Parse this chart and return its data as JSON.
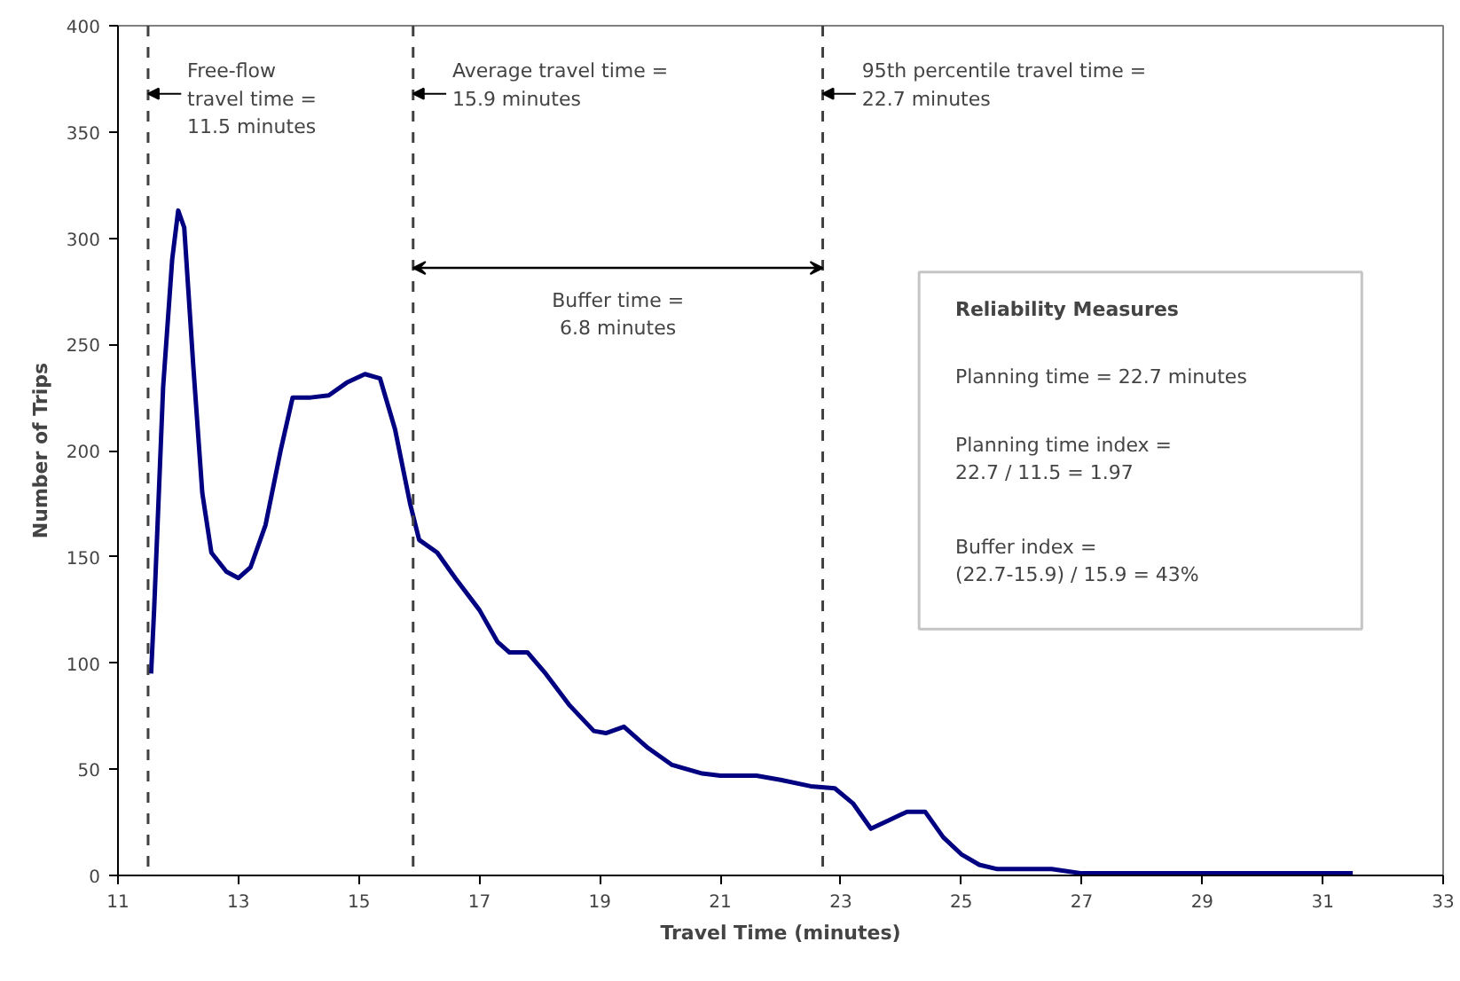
{
  "chart_data": {
    "type": "line",
    "xlabel": "Travel Time (minutes)",
    "ylabel": "Number of Trips",
    "x": [
      11.55,
      11.6,
      11.75,
      11.9,
      12.0,
      12.1,
      12.25,
      12.4,
      12.55,
      12.8,
      13.0,
      13.2,
      13.45,
      13.7,
      13.9,
      14.2,
      14.5,
      14.8,
      15.1,
      15.35,
      15.6,
      15.85,
      16.0,
      16.3,
      16.6,
      17.0,
      17.3,
      17.5,
      17.8,
      18.1,
      18.5,
      18.9,
      19.1,
      19.4,
      19.8,
      20.2,
      20.7,
      21.0,
      21.6,
      22.0,
      22.5,
      22.9,
      23.2,
      23.5,
      23.8,
      24.1,
      24.4,
      24.7,
      25.0,
      25.3,
      25.6,
      26.5,
      27.0,
      28.0,
      30.0,
      31.5
    ],
    "series": [
      {
        "color": "#000080",
        "values": [
          95,
          125,
          230,
          290,
          313,
          305,
          240,
          180,
          152,
          143,
          140,
          145,
          165,
          200,
          225,
          225,
          226,
          232,
          236,
          234,
          210,
          175,
          158,
          152,
          140,
          125,
          110,
          105,
          105,
          95,
          80,
          68,
          67,
          70,
          60,
          52,
          48,
          47,
          47,
          45,
          42,
          41,
          34,
          22,
          26,
          30,
          30,
          18,
          10,
          5,
          3,
          3,
          1,
          1,
          1,
          1
        ]
      }
    ],
    "xlim": [
      11,
      33
    ],
    "xticks": [
      11,
      13,
      15,
      17,
      19,
      21,
      23,
      25,
      27,
      29,
      31,
      33
    ],
    "ylim": [
      0,
      400
    ],
    "yticks": [
      0,
      50,
      100,
      150,
      200,
      250,
      300,
      350,
      400
    ],
    "grid": false,
    "marker": "none",
    "line_style": "solid",
    "ref_lines": [
      {
        "axis": "x",
        "value": 11.5,
        "label": "Free-flow\ntravel time =\n11.5 minutes",
        "color": "#404040",
        "line_style": "dashed"
      },
      {
        "axis": "x",
        "value": 15.9,
        "label": "Average travel time =\n15.9 minutes",
        "color": "#404040",
        "line_style": "dashed"
      },
      {
        "axis": "x",
        "value": 22.7,
        "label": "95th percentile travel time =\n22.7 minutes",
        "color": "#404040",
        "line_style": "dashed"
      }
    ],
    "annotations": [
      "Buffer time =\n6.8 minutes",
      "Reliability Measures",
      "Planning time = 22.7 minutes",
      "Planning time index =\n22.7 / 11.5 = 1.97",
      "Buffer index =\n(22.7-15.9) / 15.9 = 43%"
    ]
  }
}
